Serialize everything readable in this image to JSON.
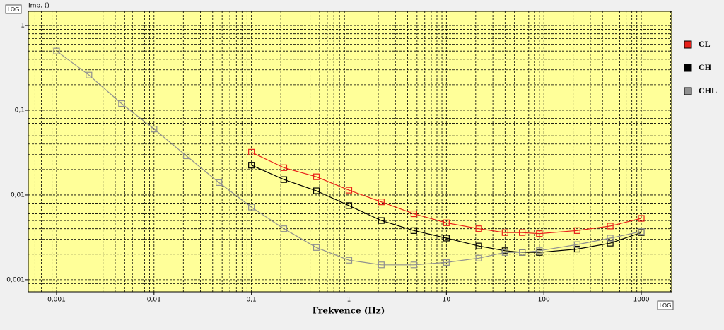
{
  "chart_data": {
    "type": "line",
    "ylabel": "Imp. ()",
    "xlabel": "Frekvence (Hz)",
    "y_scale_badge": "LOG",
    "x_scale_badge": "LOG",
    "xscale": "log",
    "yscale": "log",
    "grid": true,
    "legend": "right",
    "xlim": [
      0.000513,
      2050
    ],
    "ylim": [
      0.00072,
      1.47
    ],
    "xticks": [
      {
        "value": 0.001,
        "label": "0,001"
      },
      {
        "value": 0.01,
        "label": "0,01"
      },
      {
        "value": 0.1,
        "label": "0,1"
      },
      1,
      10,
      100,
      1000
    ],
    "yticks": [
      {
        "value": 0.001,
        "label": "0,001"
      },
      {
        "value": 0.01,
        "label": "0,01"
      },
      {
        "value": 0.1,
        "label": "0,1"
      },
      1
    ],
    "series": [
      {
        "name": "CL",
        "color": "#e8201a",
        "x": [
          0.1,
          0.215,
          0.464,
          1,
          2.15,
          4.64,
          10,
          21.5,
          40,
          60,
          90,
          220,
          480,
          1000
        ],
        "values": [
          0.032,
          0.021,
          0.0164,
          0.0114,
          0.0083,
          0.006,
          0.0047,
          0.004,
          0.0036,
          0.0036,
          0.0035,
          0.0038,
          0.0043,
          0.0053
        ]
      },
      {
        "name": "CH",
        "color": "#000000",
        "x": [
          0.1,
          0.215,
          0.464,
          1,
          2.15,
          4.64,
          10,
          21.5,
          40,
          60,
          90,
          220,
          480,
          1000
        ],
        "values": [
          0.0225,
          0.0152,
          0.0112,
          0.0075,
          0.005,
          0.0038,
          0.0031,
          0.0025,
          0.0022,
          0.0021,
          0.0021,
          0.0023,
          0.0027,
          0.0036
        ]
      },
      {
        "name": "CHL",
        "color": "#909090",
        "x": [
          0.001,
          0.00215,
          0.00464,
          0.01,
          0.0215,
          0.0464,
          0.1,
          0.215,
          0.464,
          1,
          2.15,
          4.64,
          10,
          21.5,
          40,
          60,
          90,
          220,
          480,
          1000
        ],
        "values": [
          0.5,
          0.26,
          0.12,
          0.06,
          0.029,
          0.014,
          0.0072,
          0.004,
          0.0024,
          0.0017,
          0.0015,
          0.0015,
          0.0016,
          0.0018,
          0.0021,
          0.0021,
          0.0022,
          0.0026,
          0.0031,
          0.0037
        ]
      }
    ]
  }
}
